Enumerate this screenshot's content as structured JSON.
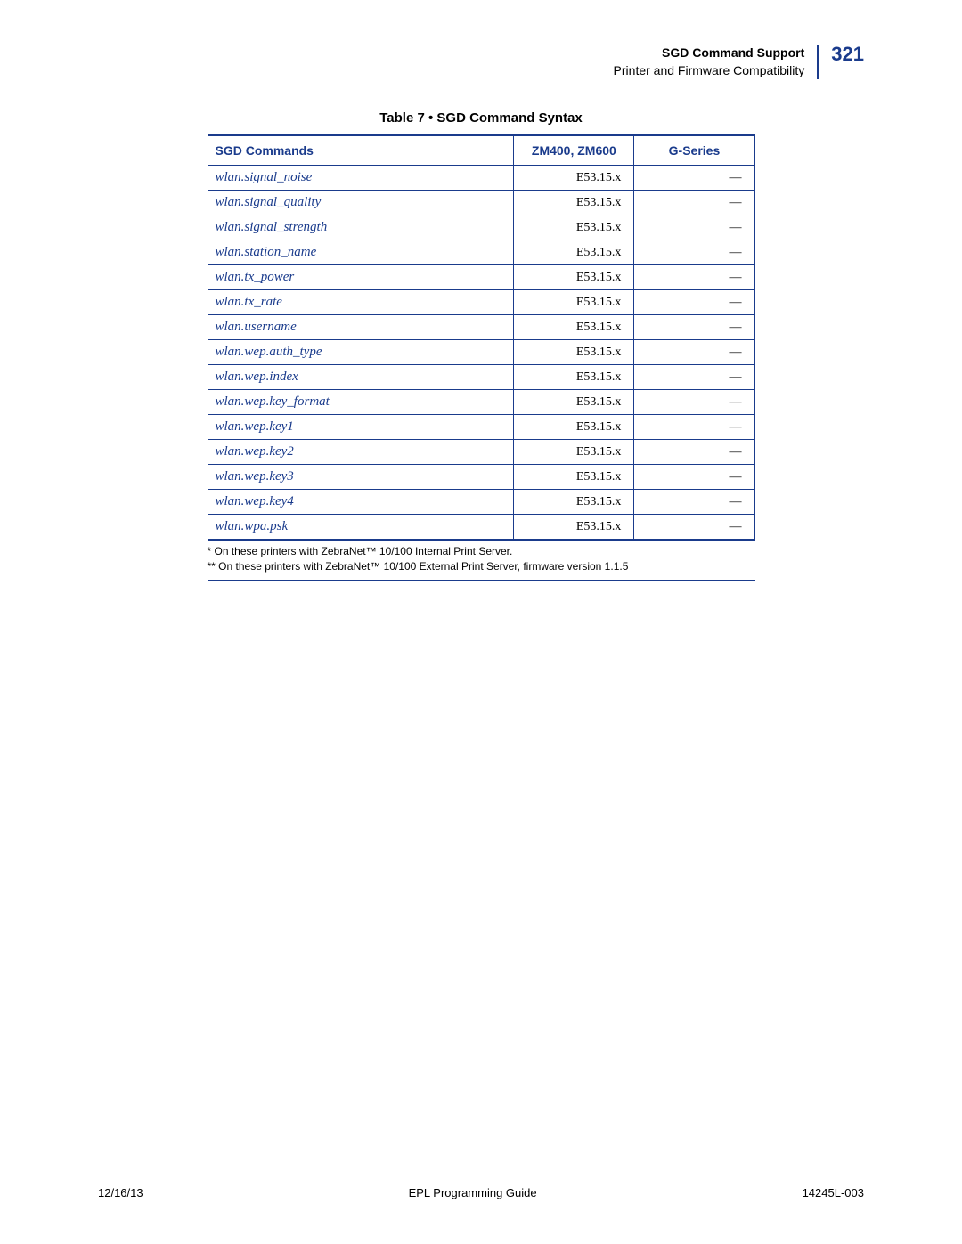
{
  "header": {
    "title": "SGD Command Support",
    "subtitle": "Printer and Firmware Compatibility",
    "page_number": "321"
  },
  "table": {
    "caption": "Table 7 • SGD Command Syntax",
    "columns": [
      "SGD Commands",
      "ZM400, ZM600",
      "G-Series"
    ],
    "rows": [
      [
        "wlan.signal_noise",
        "E53.15.x",
        "—"
      ],
      [
        "wlan.signal_quality",
        "E53.15.x",
        "—"
      ],
      [
        "wlan.signal_strength",
        "E53.15.x",
        "—"
      ],
      [
        "wlan.station_name",
        "E53.15.x",
        "—"
      ],
      [
        "wlan.tx_power",
        "E53.15.x",
        "—"
      ],
      [
        "wlan.tx_rate",
        "E53.15.x",
        "—"
      ],
      [
        "wlan.username",
        "E53.15.x",
        "—"
      ],
      [
        "wlan.wep.auth_type",
        "E53.15.x",
        "—"
      ],
      [
        "wlan.wep.index",
        "E53.15.x",
        "—"
      ],
      [
        "wlan.wep.key_format",
        "E53.15.x",
        "—"
      ],
      [
        "wlan.wep.key1",
        "E53.15.x",
        "—"
      ],
      [
        "wlan.wep.key2",
        "E53.15.x",
        "—"
      ],
      [
        "wlan.wep.key3",
        "E53.15.x",
        "—"
      ],
      [
        "wlan.wep.key4",
        "E53.15.x",
        "—"
      ],
      [
        "wlan.wpa.psk",
        "E53.15.x",
        "—"
      ]
    ],
    "footnotes": [
      "* On these printers with ZebraNet™ 10/100 Internal Print Server.",
      "** On these printers with ZebraNet™ 10/100 External Print Server, firmware version 1.1.5"
    ]
  },
  "footer": {
    "date": "12/16/13",
    "title": "EPL Programming Guide",
    "doc_id": "14245L-003"
  },
  "colors": {
    "accent": "#1a3b8c",
    "text": "#000000",
    "bg": "#ffffff"
  }
}
